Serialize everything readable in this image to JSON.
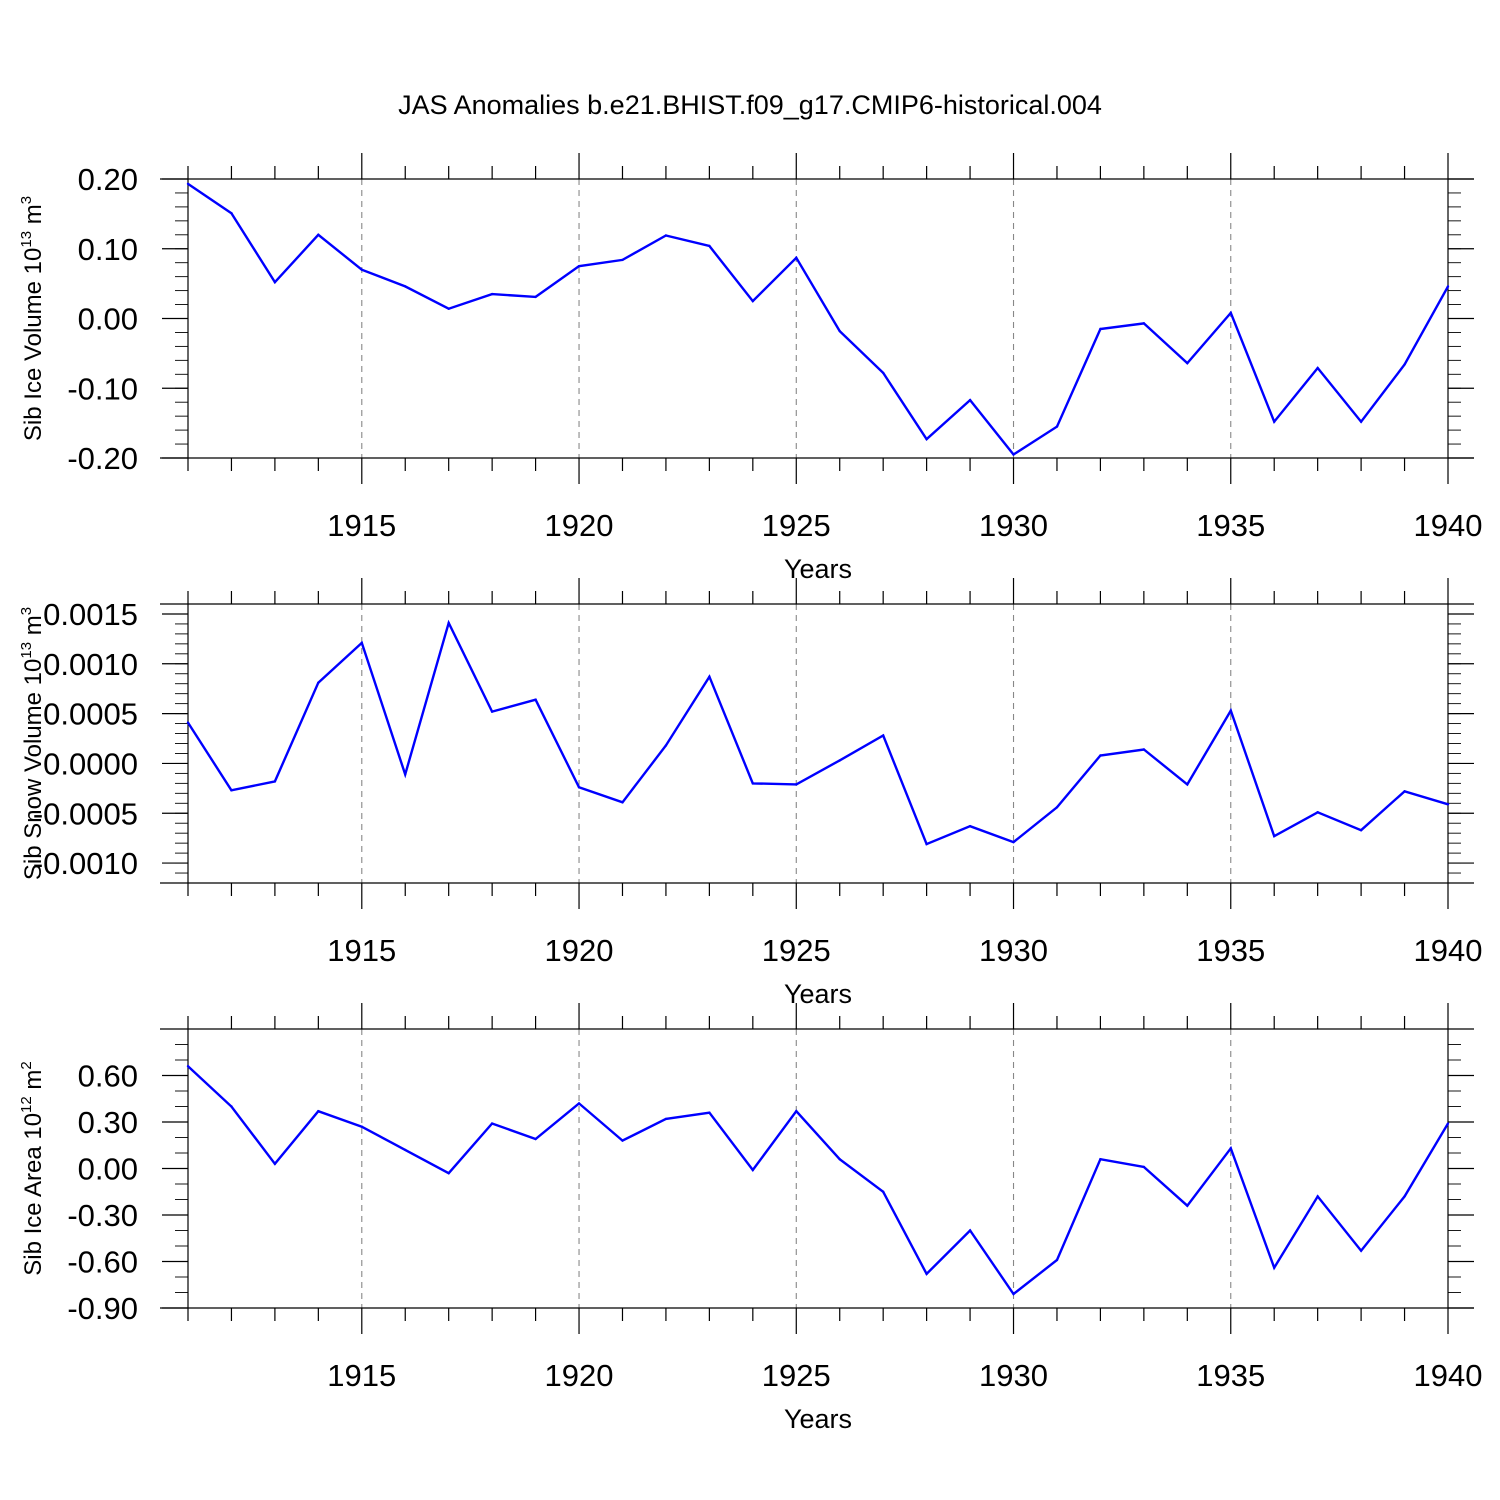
{
  "title": "JAS Anomalies b.e21.BHIST.f09_g17.CMIP6-historical.004",
  "colors": {
    "series": "#0000ff",
    "grid": "#888888",
    "axes": "#000000",
    "background": "#ffffff"
  },
  "chart_data": [
    {
      "type": "line",
      "ylabel": "Sib Ice Volume 10",
      "ylabel_exponent": "13",
      "ylabel_unit": "m",
      "ylabel_unit_exponent": "3",
      "xlabel": "Years",
      "xlim": [
        1911,
        1940
      ],
      "ylim": [
        -0.2,
        0.2
      ],
      "xticks": [
        "1915",
        "1920",
        "1925",
        "1930",
        "1935",
        "1940"
      ],
      "yticks": [
        "0.20",
        "0.10",
        "0.00",
        "-0.10",
        "-0.20"
      ],
      "grid": "vertical dashed at labeled years",
      "x": [
        1911,
        1912,
        1913,
        1914,
        1915,
        1916,
        1917,
        1918,
        1919,
        1920,
        1921,
        1922,
        1923,
        1924,
        1925,
        1926,
        1927,
        1928,
        1929,
        1930,
        1931,
        1932,
        1933,
        1934,
        1935,
        1936,
        1937,
        1938,
        1939,
        1940
      ],
      "y": [
        0.193,
        0.151,
        0.052,
        0.12,
        0.07,
        0.046,
        0.014,
        0.035,
        0.031,
        0.075,
        0.084,
        0.119,
        0.104,
        0.025,
        0.087,
        -0.018,
        -0.078,
        -0.173,
        -0.117,
        -0.195,
        -0.155,
        -0.015,
        -0.007,
        -0.064,
        0.008,
        -0.148,
        -0.071,
        -0.148,
        -0.066,
        0.046
      ]
    },
    {
      "type": "line",
      "ylabel": "Sib Snow Volume 10",
      "ylabel_exponent": "13",
      "ylabel_unit": "m",
      "ylabel_unit_exponent": "3",
      "xlabel": "Years",
      "xlim": [
        1911,
        1940
      ],
      "ylim": [
        -0.0012,
        0.0016
      ],
      "xticks": [
        "1915",
        "1920",
        "1925",
        "1930",
        "1935",
        "1940"
      ],
      "yticks": [
        "0.0015",
        "0.0010",
        "0.0005",
        "0.0000",
        "-0.0005",
        "-0.0010"
      ],
      "grid": "vertical dashed at labeled years",
      "x": [
        1911,
        1912,
        1913,
        1914,
        1915,
        1916,
        1917,
        1918,
        1919,
        1920,
        1921,
        1922,
        1923,
        1924,
        1925,
        1926,
        1927,
        1928,
        1929,
        1930,
        1931,
        1932,
        1933,
        1934,
        1935,
        1936,
        1937,
        1938,
        1939,
        1940
      ],
      "y": [
        0.00041,
        -0.00027,
        -0.00018,
        0.00081,
        0.00121,
        -0.00011,
        0.00141,
        0.00052,
        0.00064,
        -0.00024,
        -0.00039,
        0.00018,
        0.00087,
        -0.0002,
        -0.00021,
        3e-05,
        0.00028,
        -0.00081,
        -0.00063,
        -0.00079,
        -0.00044,
        8e-05,
        0.00014,
        -0.00021,
        0.00053,
        -0.00073,
        -0.00049,
        -0.00067,
        -0.00028,
        -0.00041
      ]
    },
    {
      "type": "line",
      "ylabel": "Sib Ice Area 10",
      "ylabel_exponent": "12",
      "ylabel_unit": "m",
      "ylabel_unit_exponent": "2",
      "xlabel": "Years",
      "xlim": [
        1911,
        1940
      ],
      "ylim": [
        -0.9,
        0.9
      ],
      "xticks": [
        "1915",
        "1920",
        "1925",
        "1930",
        "1935",
        "1940"
      ],
      "yticks": [
        "0.60",
        "0.30",
        "0.00",
        "-0.30",
        "-0.60",
        "-0.90"
      ],
      "grid": "vertical dashed at labeled years",
      "x": [
        1911,
        1912,
        1913,
        1914,
        1915,
        1916,
        1917,
        1918,
        1919,
        1920,
        1921,
        1922,
        1923,
        1924,
        1925,
        1926,
        1927,
        1928,
        1929,
        1930,
        1931,
        1932,
        1933,
        1934,
        1935,
        1936,
        1937,
        1938,
        1939,
        1940
      ],
      "y": [
        0.66,
        0.4,
        0.03,
        0.37,
        0.27,
        0.12,
        -0.03,
        0.29,
        0.19,
        0.42,
        0.18,
        0.32,
        0.36,
        -0.01,
        0.37,
        0.06,
        -0.15,
        -0.68,
        -0.4,
        -0.81,
        -0.59,
        0.06,
        0.01,
        -0.24,
        0.13,
        -0.64,
        -0.18,
        -0.53,
        -0.18,
        0.29
      ]
    }
  ]
}
